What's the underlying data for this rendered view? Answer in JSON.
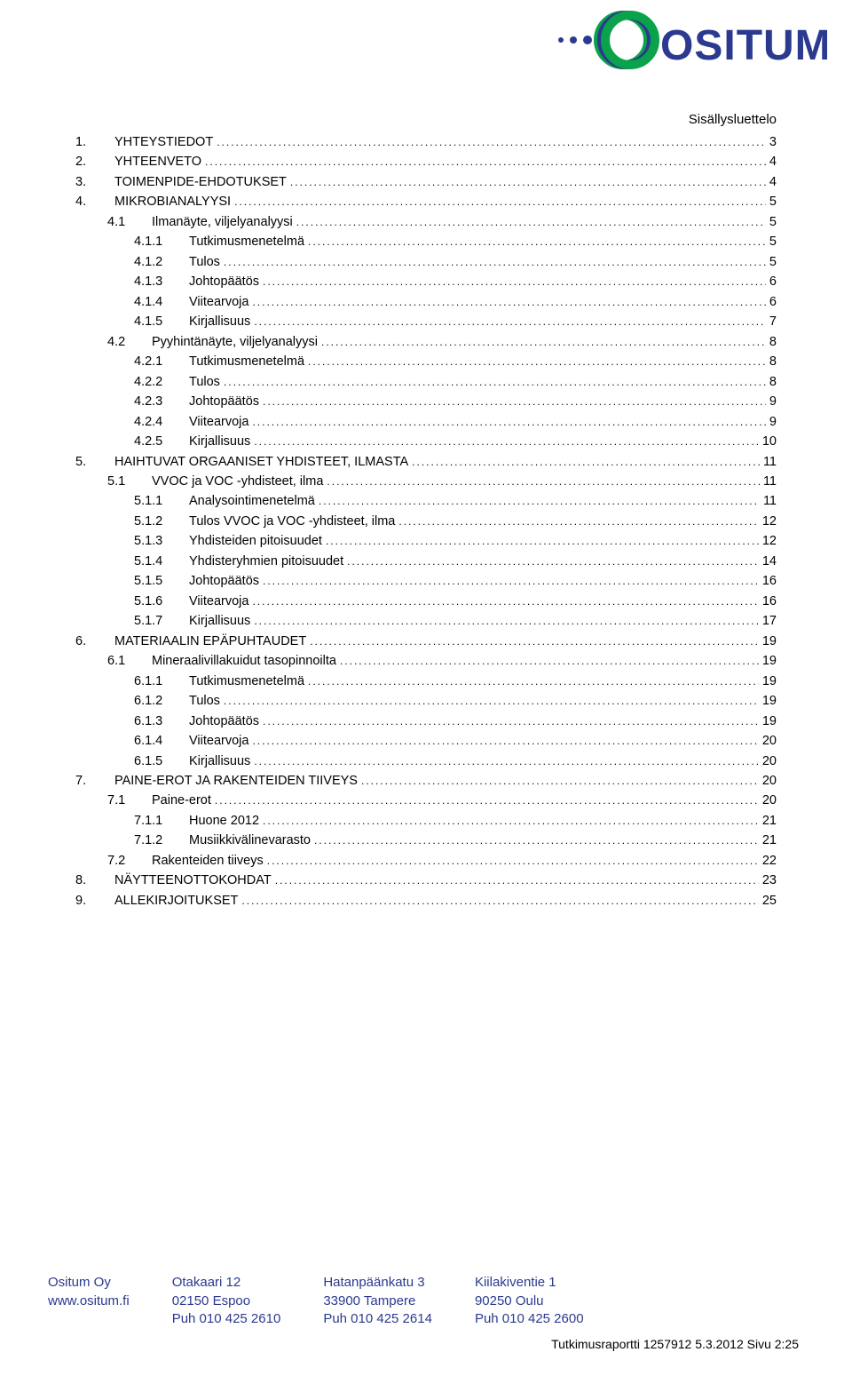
{
  "logo": {
    "text": "OSITUM",
    "text_color": "#2b3a8f",
    "ring_colors": [
      "#0aa24a",
      "#2b3a8f",
      "#0aa24a"
    ],
    "dot_color": "#2b3a8f"
  },
  "toc_title": "Sisällysluettelo",
  "toc": [
    {
      "level": 0,
      "num": "1.",
      "label": "YHTEYSTIEDOT",
      "page": "3"
    },
    {
      "level": 0,
      "num": "2.",
      "label": "YHTEENVETO",
      "page": "4"
    },
    {
      "level": 0,
      "num": "3.",
      "label": "TOIMENPIDE-EHDOTUKSET",
      "page": "4"
    },
    {
      "level": 0,
      "num": "4.",
      "label": "MIKROBIANALYYSI",
      "page": "5"
    },
    {
      "level": 1,
      "num": "4.1",
      "label": "Ilmanäyte, viljelyanalyysi",
      "page": "5"
    },
    {
      "level": 2,
      "num": "4.1.1",
      "label": "Tutkimusmenetelmä",
      "page": "5"
    },
    {
      "level": 2,
      "num": "4.1.2",
      "label": "Tulos",
      "page": "5"
    },
    {
      "level": 2,
      "num": "4.1.3",
      "label": "Johtopäätös",
      "page": "6"
    },
    {
      "level": 2,
      "num": "4.1.4",
      "label": "Viitearvoja",
      "page": "6"
    },
    {
      "level": 2,
      "num": "4.1.5",
      "label": "Kirjallisuus",
      "page": "7"
    },
    {
      "level": 1,
      "num": "4.2",
      "label": "Pyyhintänäyte, viljelyanalyysi",
      "page": "8"
    },
    {
      "level": 2,
      "num": "4.2.1",
      "label": "Tutkimusmenetelmä",
      "page": "8"
    },
    {
      "level": 2,
      "num": "4.2.2",
      "label": "Tulos",
      "page": "8"
    },
    {
      "level": 2,
      "num": "4.2.3",
      "label": "Johtopäätös",
      "page": "9"
    },
    {
      "level": 2,
      "num": "4.2.4",
      "label": "Viitearvoja",
      "page": "9"
    },
    {
      "level": 2,
      "num": "4.2.5",
      "label": "Kirjallisuus",
      "page": "10"
    },
    {
      "level": 0,
      "num": "5.",
      "label": "HAIHTUVAT ORGAANISET YHDISTEET, ILMASTA",
      "page": "11"
    },
    {
      "level": 1,
      "num": "5.1",
      "label": "VVOC ja VOC -yhdisteet, ilma",
      "page": "11"
    },
    {
      "level": 2,
      "num": "5.1.1",
      "label": "Analysointimenetelmä",
      "page": "11"
    },
    {
      "level": 2,
      "num": "5.1.2",
      "label": "Tulos VVOC ja VOC -yhdisteet, ilma",
      "page": "12"
    },
    {
      "level": 2,
      "num": "5.1.3",
      "label": "Yhdisteiden pitoisuudet",
      "page": "12"
    },
    {
      "level": 2,
      "num": "5.1.4",
      "label": "Yhdisteryhmien pitoisuudet",
      "page": "14"
    },
    {
      "level": 2,
      "num": "5.1.5",
      "label": "Johtopäätös",
      "page": "16"
    },
    {
      "level": 2,
      "num": "5.1.6",
      "label": "Viitearvoja",
      "page": "16"
    },
    {
      "level": 2,
      "num": "5.1.7",
      "label": "Kirjallisuus",
      "page": "17"
    },
    {
      "level": 0,
      "num": "6.",
      "label": "MATERIAALIN EPÄPUHTAUDET",
      "page": "19"
    },
    {
      "level": 1,
      "num": "6.1",
      "label": "Mineraalivillakuidut tasopinnoilta",
      "page": "19"
    },
    {
      "level": 2,
      "num": "6.1.1",
      "label": "Tutkimusmenetelmä",
      "page": "19"
    },
    {
      "level": 2,
      "num": "6.1.2",
      "label": "Tulos",
      "page": "19"
    },
    {
      "level": 2,
      "num": "6.1.3",
      "label": "Johtopäätös",
      "page": "19"
    },
    {
      "level": 2,
      "num": "6.1.4",
      "label": "Viitearvoja",
      "page": "20"
    },
    {
      "level": 2,
      "num": "6.1.5",
      "label": "Kirjallisuus",
      "page": "20"
    },
    {
      "level": 0,
      "num": "7.",
      "label": "PAINE-EROT JA RAKENTEIDEN TIIVEYS",
      "page": "20"
    },
    {
      "level": 1,
      "num": "7.1",
      "label": "Paine-erot",
      "page": "20"
    },
    {
      "level": 2,
      "num": "7.1.1",
      "label": "Huone 2012",
      "page": "21"
    },
    {
      "level": 2,
      "num": "7.1.2",
      "label": "Musiikkivälinevarasto",
      "page": "21"
    },
    {
      "level": 1,
      "num": "7.2",
      "label": "Rakenteiden tiiveys",
      "page": "22"
    },
    {
      "level": 0,
      "num": "8.",
      "label": "NÄYTTEENOTTOKOHDAT",
      "page": "23"
    },
    {
      "level": 0,
      "num": "9.",
      "label": "ALLEKIRJOITUKSET",
      "page": "25"
    }
  ],
  "footer": {
    "text_color": "#2b3a8f",
    "columns": [
      {
        "lines": [
          "Ositum Oy",
          "www.ositum.fi"
        ]
      },
      {
        "lines": [
          "Otakaari 12",
          "02150 Espoo",
          "Puh 010 425 2610"
        ]
      },
      {
        "lines": [
          "Hatanpäänkatu 3",
          "33900 Tampere",
          "Puh 010 425 2614"
        ]
      },
      {
        "lines": [
          "Kiilakiventie 1",
          "90250 Oulu",
          "Puh 010 425 2600"
        ]
      }
    ],
    "report_line": "Tutkimusraportti 1257912 5.3.2012 Sivu 2:25"
  }
}
